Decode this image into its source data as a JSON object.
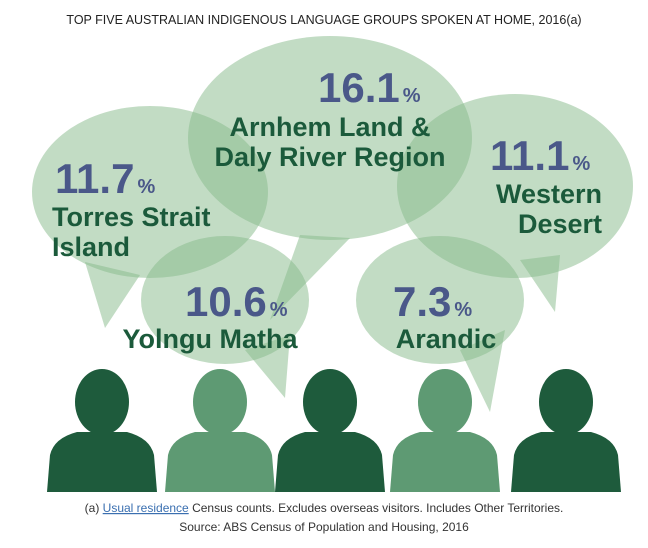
{
  "chart_data": {
    "type": "speech-bubbles",
    "title": "TOP FIVE AUSTRALIAN INDIGENOUS LANGUAGE GROUPS SPOKEN AT HOME, 2016(a)",
    "categories": [
      "Arnhem Land &\nDaly River Region",
      "Torres Strait\nIsland",
      "Western\nDesert",
      "Yolngu Matha",
      "Arandic"
    ],
    "values": [
      16.1,
      11.7,
      11.1,
      10.6,
      7.3
    ],
    "unit": "%",
    "footnote": {
      "marker": "(a)",
      "link": "Usual residence",
      "text": "Census counts. Excludes overseas visitors. Includes Other Territories."
    },
    "source": "Source: ABS Census of Population and Housing, 2016"
  }
}
